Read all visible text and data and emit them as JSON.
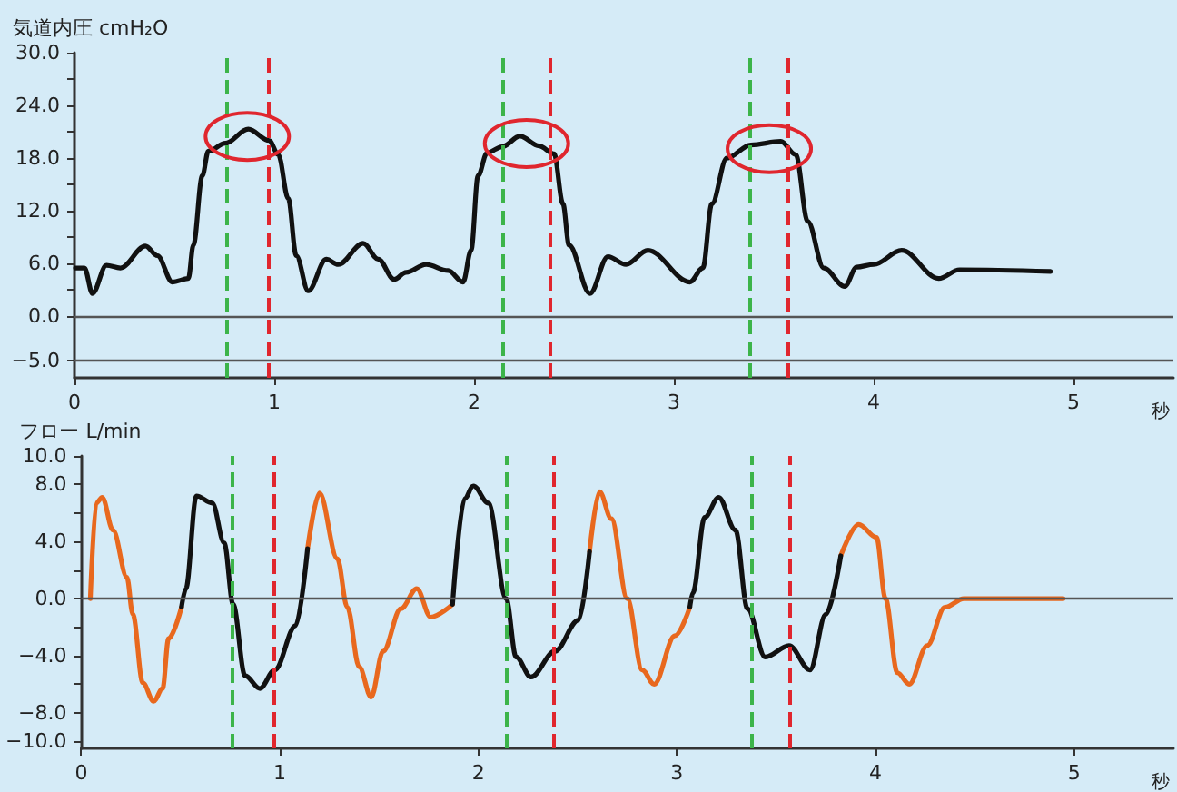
{
  "chart_data": [
    {
      "type": "line",
      "ylabel": "気道内圧 cmH₂O",
      "xlabel": "秒",
      "marker": "none",
      "grid": false,
      "x": [
        0.005,
        0.05,
        0.09,
        0.16,
        0.23,
        0.355,
        0.415,
        0.49,
        0.57,
        0.595,
        0.64,
        0.67,
        0.755,
        0.87,
        0.975,
        1.02,
        1.07,
        1.11,
        1.17,
        1.26,
        1.32,
        1.445,
        1.52,
        1.6,
        1.66,
        1.76,
        1.87,
        1.945,
        1.985,
        2.02,
        2.065,
        2.14,
        2.23,
        2.325,
        2.4,
        2.445,
        2.475,
        2.58,
        2.67,
        2.76,
        2.87,
        3.08,
        3.145,
        3.19,
        3.265,
        3.385,
        3.535,
        3.61,
        3.67,
        3.75,
        3.855,
        3.915,
        4.0,
        4.14,
        4.325,
        4.43,
        4.885
      ],
      "series": [
        {
          "color": "#111111",
          "values": [
            5.5,
            5.5,
            2.6,
            5.8,
            5.5,
            8.0,
            6.9,
            3.9,
            4.3,
            8.1,
            16.0,
            18.8,
            19.7,
            21.3,
            20.0,
            18.4,
            13.4,
            6.9,
            2.9,
            6.5,
            5.9,
            8.3,
            6.5,
            4.2,
            5.0,
            5.9,
            5.2,
            3.9,
            7.5,
            16.0,
            18.6,
            19.3,
            20.5,
            19.4,
            18.5,
            12.8,
            8.1,
            2.6,
            6.8,
            5.9,
            7.5,
            3.9,
            5.5,
            12.8,
            18.0,
            19.5,
            19.9,
            18.4,
            10.8,
            5.5,
            3.4,
            5.6,
            5.9,
            7.5,
            4.3,
            5.3,
            5.1
          ]
        }
      ],
      "xlim": [
        0,
        5.5
      ],
      "xticks": [
        0,
        1,
        2,
        3,
        4,
        5
      ],
      "ylim": [
        -7,
        30
      ],
      "yticks": [
        {
          "value": 30,
          "label": "30.0"
        },
        {
          "value": 27,
          "label": null
        },
        {
          "value": 24,
          "label": "24.0"
        },
        {
          "value": 21,
          "label": null
        },
        {
          "value": 18,
          "label": "18.0"
        },
        {
          "value": 15,
          "label": null
        },
        {
          "value": 12,
          "label": "12.0"
        },
        {
          "value": 9,
          "label": null
        },
        {
          "value": 6,
          "label": "6.0"
        },
        {
          "value": 3,
          "label": null
        },
        {
          "value": 0,
          "label": "0.0"
        },
        {
          "value": -5,
          "label": "−5.0"
        }
      ],
      "ref_lines": [
        {
          "axis": "y",
          "value": 0,
          "color": "#555555",
          "line_style": "solid"
        },
        {
          "axis": "y",
          "value": -5,
          "color": "#555555",
          "line_style": "solid"
        },
        {
          "axis": "x",
          "value": 0.755,
          "color": "#3cb44a",
          "line_style": "dashed"
        },
        {
          "axis": "x",
          "value": 0.975,
          "color": "#e0262e",
          "line_style": "dashed"
        },
        {
          "axis": "x",
          "value": 2.14,
          "color": "#3cb44a",
          "line_style": "dashed"
        },
        {
          "axis": "x",
          "value": 2.385,
          "color": "#e0262e",
          "line_style": "dashed"
        },
        {
          "axis": "x",
          "value": 3.385,
          "color": "#3cb44a",
          "line_style": "dashed"
        },
        {
          "axis": "x",
          "value": 3.57,
          "color": "#e0262e",
          "line_style": "dashed"
        }
      ]
    },
    {
      "type": "line",
      "ylabel": "フロー L/min",
      "xlabel": "秒",
      "marker": "none",
      "grid": false,
      "series": [
        {
          "color": "#e8681e",
          "x": [
            0.046,
            0.075,
            0.106,
            0.16,
            0.23,
            0.26,
            0.31,
            0.365,
            0.41,
            0.44,
            0.505,
            0.8,
            1.14,
            1.2,
            1.29,
            1.34,
            1.4,
            1.46,
            1.52,
            1.61,
            1.69,
            1.76,
            1.87,
            2.2,
            2.56,
            2.61,
            2.67,
            2.75,
            2.825,
            2.885,
            2.99,
            3.065,
            3.4,
            3.825,
            3.915,
            4.005,
            4.05,
            4.11,
            4.17,
            4.26,
            4.35,
            4.445,
            4.945
          ],
          "values": [
            0,
            6.7,
            7.1,
            4.8,
            1.5,
            -1.1,
            -5.9,
            -7.2,
            -6.3,
            -2.8,
            -0.6,
            null,
            3.5,
            7.4,
            2.8,
            -0.6,
            -4.8,
            -6.9,
            -3.7,
            -0.7,
            0.7,
            -1.3,
            -0.4,
            null,
            3.3,
            7.5,
            5.6,
            0,
            -5.0,
            -6.0,
            -2.6,
            -0.6,
            null,
            3.0,
            5.2,
            4.3,
            0,
            -5.2,
            -6.0,
            -3.3,
            -0.6,
            0,
            0
          ]
        },
        {
          "color": "#111111",
          "x": [
            0.505,
            0.527,
            0.58,
            0.66,
            0.72,
            0.765,
            0.825,
            0.9,
            0.975,
            1.08,
            1.14,
            1.5,
            1.87,
            1.93,
            1.975,
            2.05,
            2.14,
            2.19,
            2.265,
            2.385,
            2.505,
            2.56,
            2.8,
            3.065,
            3.08,
            3.14,
            3.21,
            3.295,
            3.355,
            3.445,
            3.565,
            3.67,
            3.75,
            3.825
          ],
          "values": [
            -0.6,
            0.7,
            7.2,
            6.7,
            3.9,
            -0.4,
            -5.4,
            -6.3,
            -5.0,
            -1.9,
            3.5,
            null,
            -0.4,
            7.0,
            7.9,
            6.7,
            0,
            -4.1,
            -5.5,
            -3.7,
            -1.5,
            3.3,
            null,
            -0.6,
            0.4,
            5.7,
            7.1,
            4.8,
            -0.7,
            -4.1,
            -3.3,
            -5.0,
            -1.1,
            3.0
          ]
        }
      ],
      "xlim": [
        0,
        5.5
      ],
      "xticks": [
        0,
        1,
        2,
        3,
        4,
        5
      ],
      "ylim": [
        -10.5,
        10
      ],
      "yticks": [
        {
          "value": 10,
          "label": "10.0"
        },
        {
          "value": 8,
          "label": "8.0"
        },
        {
          "value": 6,
          "label": null
        },
        {
          "value": 4,
          "label": "4.0"
        },
        {
          "value": 2,
          "label": null
        },
        {
          "value": 0,
          "label": "0.0"
        },
        {
          "value": -2,
          "label": null
        },
        {
          "value": -4,
          "label": "−4.0"
        },
        {
          "value": -6,
          "label": null
        },
        {
          "value": -8,
          "label": "−8.0"
        },
        {
          "value": -10,
          "label": "−10.0"
        }
      ],
      "ref_lines": [
        {
          "axis": "y",
          "value": 0,
          "color": "#555555",
          "line_style": "solid"
        },
        {
          "axis": "x",
          "value": 0.755,
          "color": "#3cb44a",
          "line_style": "dashed"
        },
        {
          "axis": "x",
          "value": 0.975,
          "color": "#e0262e",
          "line_style": "dashed"
        },
        {
          "axis": "x",
          "value": 2.14,
          "color": "#3cb44a",
          "line_style": "dashed"
        },
        {
          "axis": "x",
          "value": 2.385,
          "color": "#e0262e",
          "line_style": "dashed"
        },
        {
          "axis": "x",
          "value": 3.385,
          "color": "#3cb44a",
          "line_style": "dashed"
        },
        {
          "axis": "x",
          "value": 3.57,
          "color": "#e0262e",
          "line_style": "dashed"
        }
      ]
    }
  ]
}
